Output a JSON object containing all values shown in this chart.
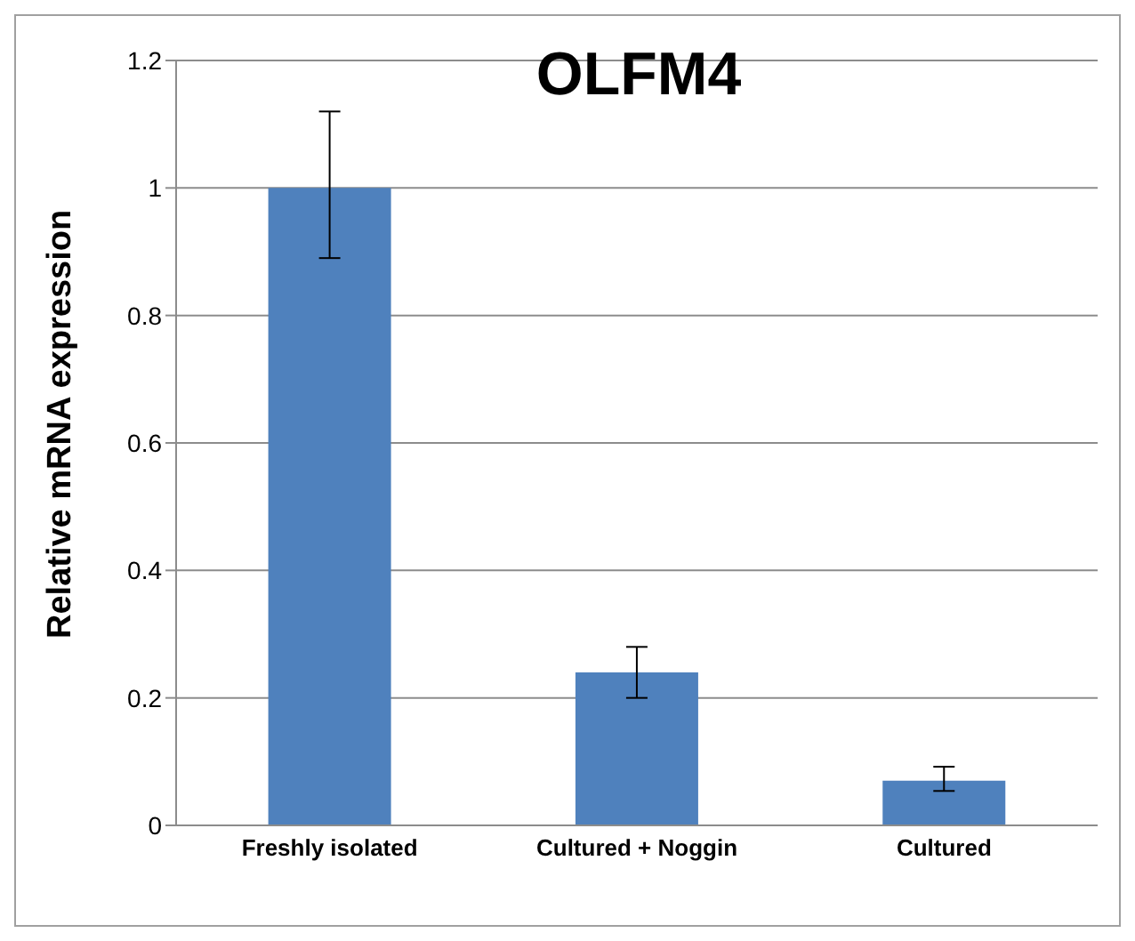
{
  "chart_data": {
    "type": "bar",
    "title": "OLFM4",
    "ylabel": "Relative mRNA  expression",
    "categories": [
      "Freshly isolated",
      "Cultured + Noggin",
      "Cultured"
    ],
    "values": [
      1,
      0.24,
      0.07
    ],
    "errors": [
      [
        0.89,
        1.12
      ],
      [
        0.2,
        0.28
      ],
      [
        0.054,
        0.092
      ]
    ],
    "color": "#4f81bd",
    "ylim": [
      0,
      1.2
    ],
    "yticks": [
      0,
      0.2,
      0.4,
      0.6,
      0.8,
      1,
      1.2
    ],
    "grid": "y",
    "legend": false
  }
}
